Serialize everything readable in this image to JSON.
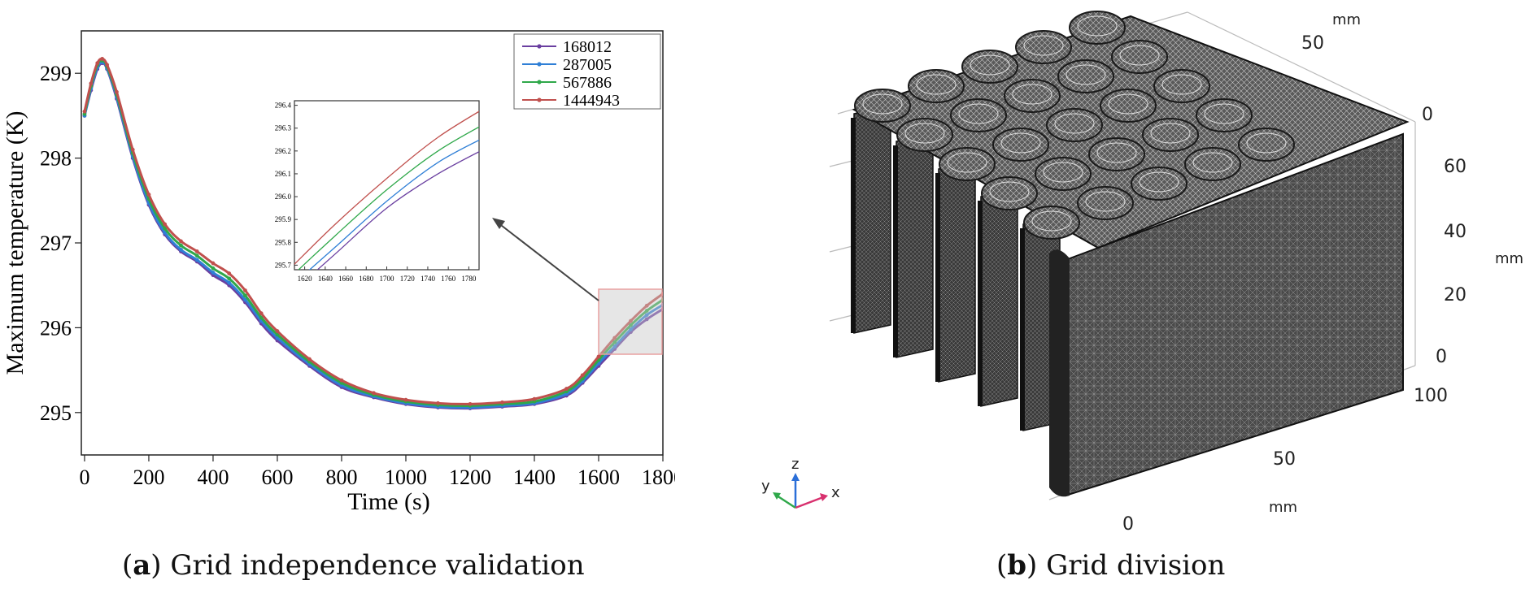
{
  "chart_data": {
    "type": "line",
    "title": "",
    "xlabel": "Time (s)",
    "ylabel": "Maximum temperature (K)",
    "xlim": [
      -10,
      1800
    ],
    "ylim": [
      294.5,
      299.5
    ],
    "xticks": [
      "0",
      "200",
      "400",
      "600",
      "800",
      "1000",
      "1200",
      "1400",
      "1600",
      "1800"
    ],
    "yticks": [
      "295",
      "296",
      "297",
      "298",
      "299"
    ],
    "legend_position": "top-right",
    "series": [
      {
        "name": "168012",
        "color": "#6a3fa0",
        "x": [
          0,
          20,
          40,
          55,
          70,
          100,
          150,
          200,
          250,
          300,
          350,
          400,
          450,
          500,
          550,
          600,
          700,
          800,
          900,
          1000,
          1100,
          1200,
          1300,
          1400,
          1500,
          1550,
          1600,
          1650,
          1700,
          1750,
          1800
        ],
        "y": [
          298.5,
          298.8,
          299.05,
          299.12,
          299.05,
          298.7,
          298.0,
          297.45,
          297.1,
          296.9,
          296.78,
          296.62,
          296.5,
          296.3,
          296.05,
          295.85,
          295.55,
          295.3,
          295.18,
          295.1,
          295.06,
          295.05,
          295.07,
          295.1,
          295.2,
          295.35,
          295.55,
          295.75,
          295.95,
          296.1,
          296.22
        ]
      },
      {
        "name": "287005",
        "color": "#2f7fd6",
        "x": [
          0,
          20,
          40,
          55,
          70,
          100,
          150,
          200,
          250,
          300,
          350,
          400,
          450,
          500,
          550,
          600,
          700,
          800,
          900,
          1000,
          1100,
          1200,
          1300,
          1400,
          1500,
          1550,
          1600,
          1650,
          1700,
          1750,
          1800
        ],
        "y": [
          298.5,
          298.82,
          299.07,
          299.13,
          299.06,
          298.72,
          298.02,
          297.47,
          297.12,
          296.92,
          296.8,
          296.65,
          296.53,
          296.33,
          296.08,
          295.88,
          295.57,
          295.32,
          295.19,
          295.11,
          295.07,
          295.06,
          295.08,
          295.11,
          295.22,
          295.37,
          295.58,
          295.78,
          295.98,
          296.15,
          296.27
        ]
      },
      {
        "name": "567886",
        "color": "#2fa84a",
        "x": [
          0,
          20,
          40,
          55,
          70,
          100,
          150,
          200,
          250,
          300,
          350,
          400,
          450,
          500,
          550,
          600,
          700,
          800,
          900,
          1000,
          1100,
          1200,
          1300,
          1400,
          1500,
          1550,
          1600,
          1650,
          1700,
          1750,
          1800
        ],
        "y": [
          298.52,
          298.85,
          299.1,
          299.15,
          299.08,
          298.75,
          298.06,
          297.52,
          297.17,
          296.97,
          296.85,
          296.7,
          296.58,
          296.38,
          296.12,
          295.92,
          295.6,
          295.35,
          295.21,
          295.13,
          295.09,
          295.08,
          295.1,
          295.13,
          295.25,
          295.4,
          295.62,
          295.83,
          296.03,
          296.2,
          296.33
        ]
      },
      {
        "name": "1444943",
        "color": "#c0504d",
        "x": [
          0,
          20,
          40,
          55,
          70,
          100,
          150,
          200,
          250,
          300,
          350,
          400,
          450,
          500,
          550,
          600,
          700,
          800,
          900,
          1000,
          1100,
          1200,
          1300,
          1400,
          1500,
          1550,
          1600,
          1650,
          1700,
          1750,
          1800
        ],
        "y": [
          298.55,
          298.88,
          299.12,
          299.17,
          299.1,
          298.78,
          298.1,
          297.57,
          297.22,
          297.02,
          296.9,
          296.76,
          296.64,
          296.44,
          296.17,
          295.96,
          295.63,
          295.38,
          295.23,
          295.15,
          295.11,
          295.1,
          295.12,
          295.16,
          295.28,
          295.44,
          295.66,
          295.88,
          296.08,
          296.26,
          296.4
        ]
      }
    ],
    "inset": {
      "xticks": [
        "1620",
        "1640",
        "1660",
        "1680",
        "1700",
        "1720",
        "1740",
        "1760",
        "1780"
      ],
      "yticks": [
        "295.7",
        "295.8",
        "295.9",
        "296.0",
        "296.1",
        "296.2",
        "296.3",
        "296.4"
      ],
      "xlim": [
        1610,
        1790
      ],
      "ylim": [
        295.68,
        296.42
      ]
    }
  },
  "captions": {
    "a_letter": "a",
    "a_text": "Grid independence validation",
    "b_letter": "b",
    "b_text": "Grid division"
  },
  "axes3d": {
    "y_ticks": [
      "50",
      "0"
    ],
    "y_unit": "mm",
    "z_ticks": [
      "60",
      "40",
      "20",
      "0"
    ],
    "z_unit": "mm",
    "x_ticks": [
      "100",
      "50",
      "0"
    ],
    "x_unit": "mm",
    "triad": {
      "x": "x",
      "y": "y",
      "z": "z"
    }
  }
}
